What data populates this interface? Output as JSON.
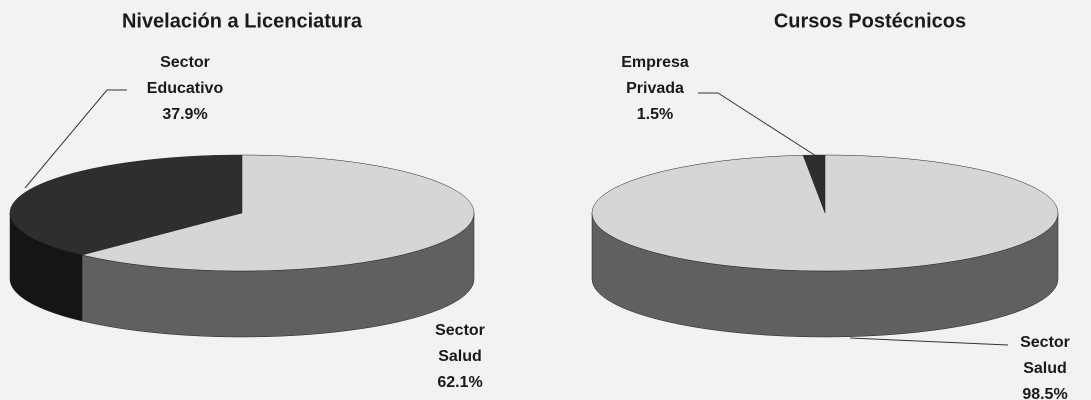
{
  "chart_data": [
    {
      "type": "pie",
      "title": "Nivelación a Licenciatura",
      "categories": [
        "Sector Educativo",
        "Sector Salud"
      ],
      "values": [
        37.9,
        62.1
      ],
      "value_labels": [
        "37.9%",
        "62.1%"
      ],
      "colors": [
        "#2e2e2e",
        "#d6d6d6"
      ]
    },
    {
      "type": "pie",
      "title": "Cursos Postécnicos",
      "categories": [
        "Empresa Privada",
        "Sector Salud"
      ],
      "values": [
        1.5,
        98.5
      ],
      "value_labels": [
        "1.5%",
        "98.5%"
      ],
      "colors": [
        "#2e2e2e",
        "#d6d6d6"
      ]
    }
  ]
}
